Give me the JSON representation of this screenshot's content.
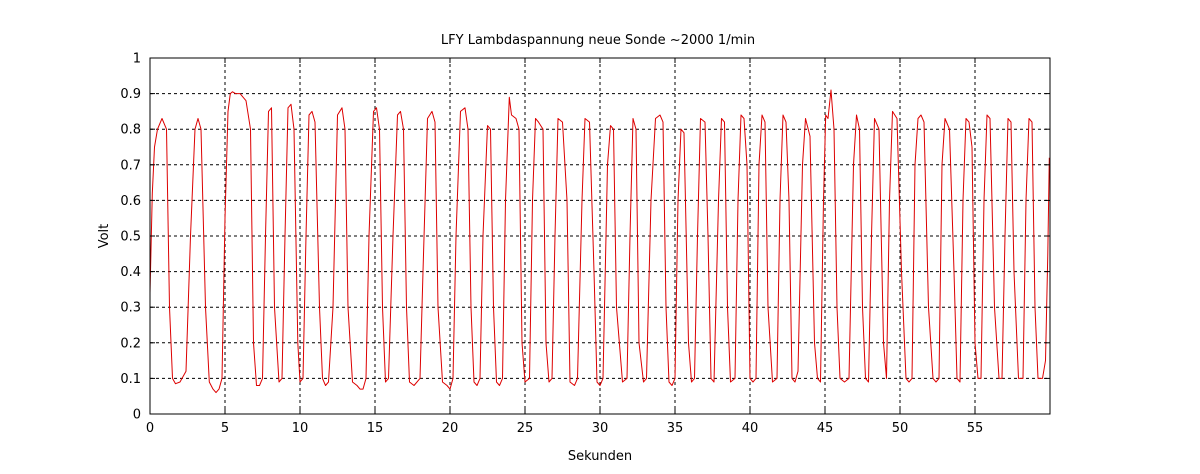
{
  "chart_data": {
    "type": "line",
    "title": "LFY  Lambdaspannung neue Sonde ~2000 1/min",
    "xlabel": "Sekunden",
    "ylabel": "Volt",
    "xlim": [
      0,
      60
    ],
    "ylim": [
      0,
      1
    ],
    "x_ticks": [
      0,
      5,
      10,
      15,
      20,
      25,
      30,
      35,
      40,
      45,
      50,
      55
    ],
    "y_ticks": [
      0,
      0.1,
      0.2,
      0.3,
      0.4,
      0.5,
      0.6,
      0.7,
      0.8,
      0.9,
      1
    ],
    "x_tick_labels": [
      "0",
      "5",
      "10",
      "15",
      "20",
      "25",
      "30",
      "35",
      "40",
      "45",
      "50",
      "55"
    ],
    "y_tick_labels": [
      "0",
      "0.1",
      "0.2",
      "0.3",
      "0.4",
      "0.5",
      "0.6",
      "0.7",
      "0.8",
      "0.9",
      "1"
    ],
    "grid": true,
    "line_color": "#dd0000",
    "series": [
      {
        "x": [
          0,
          0.15,
          0.3,
          0.5,
          0.8,
          1.1,
          1.3,
          1.5,
          1.7,
          2.0,
          2.4,
          2.7,
          3.0,
          3.2,
          3.4,
          3.7,
          3.95,
          4.2,
          4.4,
          4.6,
          4.8,
          5.0,
          5.2,
          5.35,
          5.5,
          5.7,
          6.0,
          6.4,
          6.7,
          6.9,
          7.1,
          7.3,
          7.5,
          7.7,
          7.9,
          8.1,
          8.3,
          8.6,
          8.8,
          9.0,
          9.2,
          9.4,
          9.6,
          9.85,
          10.0,
          10.2,
          10.4,
          10.6,
          10.8,
          11.0,
          11.3,
          11.5,
          11.7,
          11.9,
          12.2,
          12.5,
          12.8,
          13.0,
          13.2,
          13.5,
          13.8,
          14.0,
          14.2,
          14.4,
          14.6,
          14.9,
          15.1,
          15.3,
          15.5,
          15.7,
          15.9,
          16.2,
          16.5,
          16.7,
          16.9,
          17.1,
          17.3,
          17.6,
          17.8,
          18.0,
          18.2,
          18.5,
          18.8,
          19.0,
          19.2,
          19.5,
          19.8,
          20.0,
          20.2,
          20.4,
          20.7,
          21.0,
          21.2,
          21.4,
          21.6,
          21.8,
          22.0,
          22.2,
          22.5,
          22.7,
          22.9,
          23.1,
          23.3,
          23.5,
          23.7,
          23.95,
          24.1,
          24.4,
          24.6,
          24.8,
          25.0,
          25.3,
          25.5,
          25.7,
          25.9,
          26.2,
          26.4,
          26.6,
          26.8,
          27.0,
          27.2,
          27.5,
          27.8,
          28.0,
          28.3,
          28.5,
          28.8,
          29.0,
          29.3,
          29.6,
          29.8,
          30.0,
          30.2,
          30.5,
          30.7,
          30.9,
          31.1,
          31.5,
          31.8,
          32.0,
          32.2,
          32.4,
          32.6,
          32.9,
          33.1,
          33.4,
          33.7,
          34.0,
          34.2,
          34.4,
          34.6,
          34.8,
          35.0,
          35.2,
          35.4,
          35.6,
          35.9,
          36.1,
          36.3,
          36.5,
          36.7,
          37.0,
          37.2,
          37.4,
          37.6,
          37.9,
          38.1,
          38.3,
          38.5,
          38.7,
          39.0,
          39.2,
          39.4,
          39.6,
          39.8,
          40.0,
          40.2,
          40.4,
          40.6,
          40.8,
          41.0,
          41.2,
          41.5,
          41.8,
          42.0,
          42.2,
          42.4,
          42.6,
          42.8,
          43.0,
          43.2,
          43.5,
          43.7,
          44.0,
          44.3,
          44.5,
          44.7,
          44.9,
          45.05,
          45.2,
          45.4,
          45.6,
          45.8,
          46.0,
          46.3,
          46.6,
          46.9,
          47.1,
          47.3,
          47.5,
          47.7,
          47.9,
          48.1,
          48.3,
          48.6,
          48.9,
          49.1,
          49.3,
          49.5,
          49.8,
          50.1,
          50.4,
          50.6,
          50.8,
          51.0,
          51.2,
          51.4,
          51.6,
          51.9,
          52.2,
          52.4,
          52.6,
          52.8,
          53.0,
          53.3,
          53.6,
          53.8,
          54.0,
          54.2,
          54.4,
          54.6,
          54.8,
          55.0,
          55.2,
          55.4,
          55.6,
          55.8,
          56.0,
          56.3,
          56.6,
          56.8,
          57.0,
          57.2,
          57.4,
          57.6,
          57.9,
          58.2,
          58.4,
          58.6,
          58.8,
          59.0,
          59.2,
          59.5,
          59.7,
          59.85,
          59.95
        ],
        "y": [
          0.34,
          0.62,
          0.75,
          0.8,
          0.83,
          0.8,
          0.3,
          0.1,
          0.085,
          0.09,
          0.12,
          0.5,
          0.8,
          0.83,
          0.8,
          0.3,
          0.09,
          0.07,
          0.06,
          0.07,
          0.1,
          0.55,
          0.85,
          0.9,
          0.905,
          0.9,
          0.9,
          0.88,
          0.8,
          0.2,
          0.08,
          0.08,
          0.1,
          0.5,
          0.85,
          0.86,
          0.3,
          0.09,
          0.1,
          0.5,
          0.86,
          0.87,
          0.8,
          0.2,
          0.09,
          0.1,
          0.5,
          0.84,
          0.85,
          0.82,
          0.3,
          0.1,
          0.08,
          0.09,
          0.3,
          0.84,
          0.86,
          0.8,
          0.3,
          0.09,
          0.08,
          0.07,
          0.07,
          0.1,
          0.5,
          0.85,
          0.86,
          0.8,
          0.3,
          0.09,
          0.1,
          0.5,
          0.84,
          0.85,
          0.8,
          0.3,
          0.09,
          0.08,
          0.09,
          0.1,
          0.4,
          0.83,
          0.85,
          0.82,
          0.3,
          0.09,
          0.08,
          0.07,
          0.1,
          0.5,
          0.85,
          0.86,
          0.8,
          0.3,
          0.09,
          0.08,
          0.1,
          0.5,
          0.81,
          0.8,
          0.3,
          0.09,
          0.08,
          0.1,
          0.6,
          0.89,
          0.84,
          0.83,
          0.8,
          0.2,
          0.09,
          0.1,
          0.6,
          0.83,
          0.82,
          0.8,
          0.2,
          0.09,
          0.1,
          0.5,
          0.83,
          0.82,
          0.6,
          0.09,
          0.08,
          0.1,
          0.6,
          0.83,
          0.82,
          0.4,
          0.09,
          0.08,
          0.1,
          0.7,
          0.81,
          0.8,
          0.3,
          0.09,
          0.1,
          0.5,
          0.83,
          0.8,
          0.2,
          0.09,
          0.1,
          0.6,
          0.83,
          0.84,
          0.82,
          0.3,
          0.09,
          0.08,
          0.1,
          0.6,
          0.8,
          0.79,
          0.2,
          0.09,
          0.1,
          0.5,
          0.83,
          0.82,
          0.5,
          0.1,
          0.09,
          0.6,
          0.83,
          0.82,
          0.3,
          0.09,
          0.1,
          0.6,
          0.84,
          0.83,
          0.7,
          0.1,
          0.09,
          0.1,
          0.7,
          0.84,
          0.82,
          0.3,
          0.09,
          0.1,
          0.6,
          0.84,
          0.82,
          0.6,
          0.1,
          0.09,
          0.12,
          0.7,
          0.83,
          0.78,
          0.2,
          0.1,
          0.09,
          0.6,
          0.84,
          0.83,
          0.91,
          0.8,
          0.3,
          0.1,
          0.09,
          0.1,
          0.7,
          0.84,
          0.8,
          0.3,
          0.1,
          0.09,
          0.5,
          0.83,
          0.8,
          0.2,
          0.1,
          0.6,
          0.85,
          0.83,
          0.4,
          0.1,
          0.09,
          0.1,
          0.7,
          0.83,
          0.84,
          0.82,
          0.3,
          0.1,
          0.09,
          0.1,
          0.7,
          0.83,
          0.8,
          0.4,
          0.1,
          0.09,
          0.6,
          0.83,
          0.82,
          0.75,
          0.2,
          0.1,
          0.1,
          0.6,
          0.84,
          0.83,
          0.3,
          0.1,
          0.1,
          0.5,
          0.83,
          0.82,
          0.4,
          0.1,
          0.1,
          0.6,
          0.83,
          0.82,
          0.3,
          0.1,
          0.1,
          0.15,
          0.45,
          0.72
        ]
      }
    ]
  }
}
